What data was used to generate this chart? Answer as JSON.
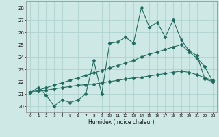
{
  "xlabel": "Humidex (Indice chaleur)",
  "background_color": "#cde8e5",
  "grid_color": "#aacfcc",
  "line_color": "#1e6b5e",
  "xlim": [
    -0.5,
    23.5
  ],
  "ylim": [
    19.5,
    28.5
  ],
  "yticks": [
    20,
    21,
    22,
    23,
    24,
    25,
    26,
    27,
    28
  ],
  "xticks": [
    0,
    1,
    2,
    3,
    4,
    5,
    6,
    7,
    8,
    9,
    10,
    11,
    12,
    13,
    14,
    15,
    16,
    17,
    18,
    19,
    20,
    21,
    22,
    23
  ],
  "line1_x": [
    0,
    1,
    2,
    3,
    4,
    5,
    6,
    7,
    8,
    9,
    10,
    11,
    12,
    13,
    14,
    15,
    16,
    17,
    18,
    19,
    20,
    21,
    22,
    23
  ],
  "line1_y": [
    21.1,
    21.5,
    20.9,
    20.0,
    20.5,
    20.3,
    20.5,
    21.0,
    23.7,
    21.0,
    25.1,
    25.2,
    25.6,
    25.1,
    28.0,
    26.4,
    26.8,
    25.6,
    27.0,
    25.4,
    24.5,
    24.1,
    22.2,
    22.0
  ],
  "line2_x": [
    0,
    1,
    2,
    3,
    4,
    5,
    6,
    7,
    8,
    9,
    10,
    11,
    12,
    13,
    14,
    15,
    16,
    17,
    18,
    19,
    20,
    21,
    22,
    23
  ],
  "line2_y": [
    21.1,
    21.3,
    21.5,
    21.7,
    21.9,
    22.1,
    22.3,
    22.5,
    22.7,
    22.9,
    23.1,
    23.3,
    23.5,
    23.7,
    24.0,
    24.2,
    24.4,
    24.6,
    24.8,
    25.0,
    24.4,
    23.9,
    23.2,
    22.0
  ],
  "line3_x": [
    0,
    1,
    2,
    3,
    4,
    5,
    6,
    7,
    8,
    9,
    10,
    11,
    12,
    13,
    14,
    15,
    16,
    17,
    18,
    19,
    20,
    21,
    22,
    23
  ],
  "line3_y": [
    21.1,
    21.2,
    21.3,
    21.4,
    21.5,
    21.6,
    21.7,
    21.75,
    21.8,
    21.9,
    22.0,
    22.1,
    22.2,
    22.3,
    22.35,
    22.45,
    22.55,
    22.65,
    22.75,
    22.85,
    22.75,
    22.55,
    22.3,
    22.1
  ]
}
